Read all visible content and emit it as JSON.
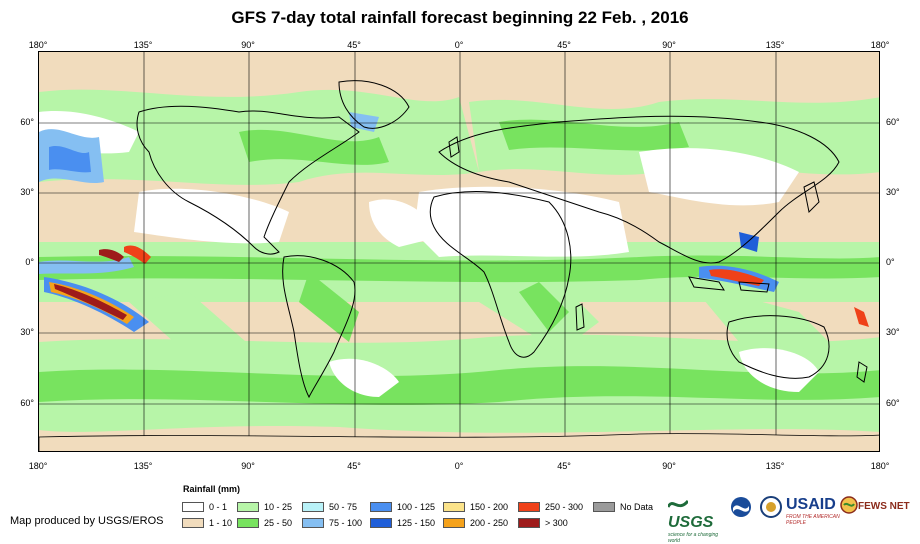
{
  "title": "GFS 7-day total rainfall forecast beginning 22 Feb. , 2016",
  "longitude_ticks": [
    "180°",
    "135°",
    "90°",
    "45°",
    "0°",
    "45°",
    "90°",
    "135°",
    "180°"
  ],
  "latitude_ticks": [
    "60°",
    "30°",
    "0°",
    "30°",
    "60°"
  ],
  "legend": {
    "title": "Rainfall (mm)",
    "items": [
      {
        "label": "0 - 1",
        "color": "#ffffff"
      },
      {
        "label": "1 - 10",
        "color": "#f1dcbd"
      },
      {
        "label": "10 - 25",
        "color": "#b7f5a8"
      },
      {
        "label": "25 - 50",
        "color": "#78e35f"
      },
      {
        "label": "50 - 75",
        "color": "#b9f2f8"
      },
      {
        "label": "75 - 100",
        "color": "#85bff2"
      },
      {
        "label": "100 - 125",
        "color": "#4a8ff0"
      },
      {
        "label": "125 - 150",
        "color": "#1f5ed8"
      },
      {
        "label": "150 - 200",
        "color": "#fbe38a"
      },
      {
        "label": "200 - 250",
        "color": "#f5a21b"
      },
      {
        "label": "250 - 300",
        "color": "#ef4119"
      },
      {
        "label": "> 300",
        "color": "#9e1b1b"
      },
      {
        "label": "No Data",
        "color": "#9b9b9b"
      }
    ]
  },
  "credit": "Map produced by USGS/EROS",
  "logos": {
    "usgs": "USGS",
    "usgs_tagline": "science for a changing world",
    "usaid": "USAID",
    "usaid_tagline": "FROM THE AMERICAN PEOPLE",
    "fews": "FEWS NET"
  }
}
